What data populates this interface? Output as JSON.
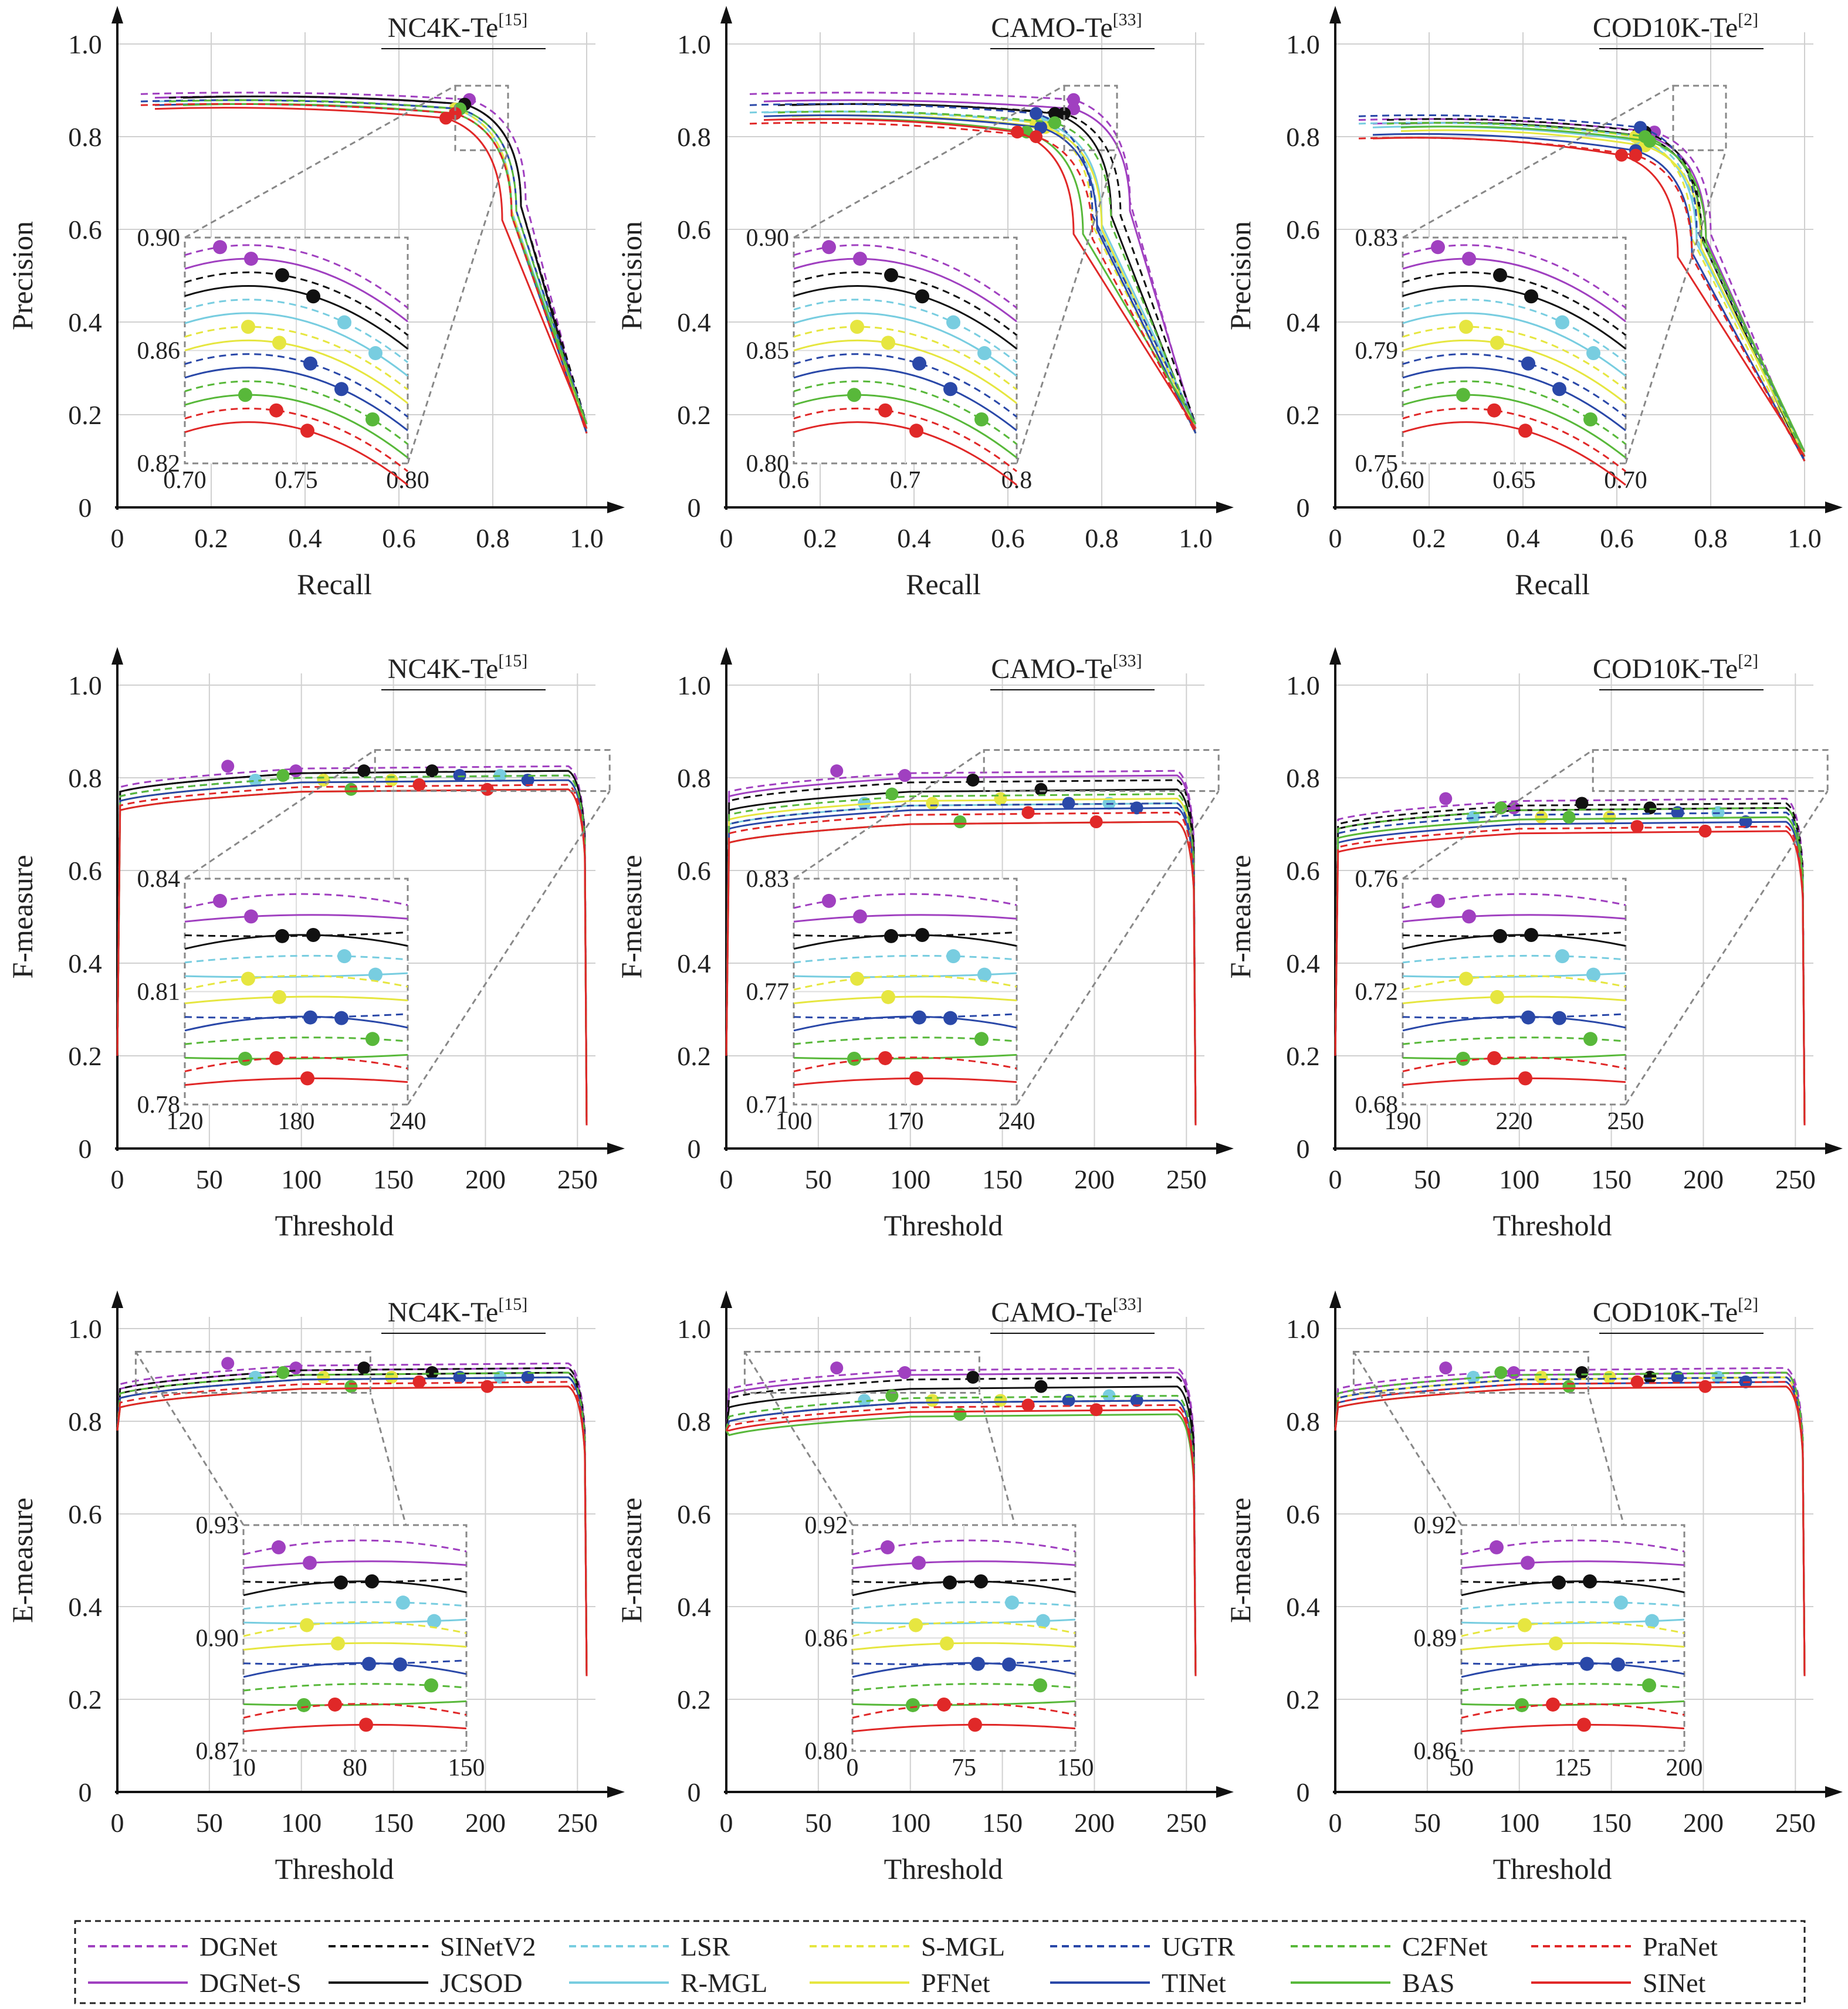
{
  "figure": {
    "rows": [
      {
        "kind": "pr",
        "ylabel": "Precision",
        "xlabel": "Recall",
        "yticks": [
          "0",
          "0.2",
          "0.4",
          "0.6",
          "0.8",
          "1.0"
        ],
        "xticks": [
          "0",
          "0.2",
          "0.4",
          "0.6",
          "0.8",
          "1.0"
        ]
      },
      {
        "kind": "fm",
        "ylabel": "F-measure",
        "xlabel": "Threshold",
        "yticks": [
          "0",
          "0.2",
          "0.4",
          "0.6",
          "0.8",
          "1.0"
        ],
        "xticks": [
          "0",
          "50",
          "100",
          "150",
          "200",
          "250"
        ]
      },
      {
        "kind": "em",
        "ylabel": "E-measure",
        "xlabel": "Threshold",
        "yticks": [
          "0",
          "0.2",
          "0.4",
          "0.6",
          "0.8",
          "1.0"
        ],
        "xticks": [
          "0",
          "50",
          "100",
          "150",
          "200",
          "250"
        ]
      }
    ],
    "datasets": [
      {
        "name": "NC4K-Te",
        "ref": "[15]"
      },
      {
        "name": "CAMO-Te",
        "ref": "[33]"
      },
      {
        "name": "COD10K-Te",
        "ref": "[2]"
      }
    ],
    "insets": [
      [
        {
          "y": [
            "0.90",
            "0.86",
            "0.82"
          ],
          "x": [
            "0.70",
            "0.75",
            "0.80"
          ]
        },
        {
          "y": [
            "0.90",
            "0.85",
            "0.80"
          ],
          "x": [
            "0.6",
            "0.7",
            "0.8"
          ]
        },
        {
          "y": [
            "0.83",
            "0.79",
            "0.75"
          ],
          "x": [
            "0.60",
            "0.65",
            "0.70"
          ]
        }
      ],
      [
        {
          "y": [
            "0.84",
            "0.81",
            "0.78"
          ],
          "x": [
            "120",
            "180",
            "240"
          ]
        },
        {
          "y": [
            "0.83",
            "0.77",
            "0.71"
          ],
          "x": [
            "100",
            "170",
            "240"
          ]
        },
        {
          "y": [
            "0.76",
            "0.72",
            "0.68"
          ],
          "x": [
            "190",
            "220",
            "250"
          ]
        }
      ],
      [
        {
          "y": [
            "0.93",
            "0.90",
            "0.87"
          ],
          "x": [
            "10",
            "80",
            "150"
          ]
        },
        {
          "y": [
            "0.92",
            "0.86",
            "0.80"
          ],
          "x": [
            "0",
            "75",
            "150"
          ]
        },
        {
          "y": [
            "0.92",
            "0.89",
            "0.86"
          ],
          "x": [
            "50",
            "125",
            "200"
          ]
        }
      ]
    ]
  },
  "legend": [
    {
      "name": "DGNet",
      "color": "#a040c0",
      "dash": true
    },
    {
      "name": "SINetV2",
      "color": "#111111",
      "dash": true
    },
    {
      "name": "LSR",
      "color": "#78cde0",
      "dash": true
    },
    {
      "name": "S-MGL",
      "color": "#e6e640",
      "dash": true
    },
    {
      "name": "UGTR",
      "color": "#2a48a8",
      "dash": true
    },
    {
      "name": "C2FNet",
      "color": "#58b83a",
      "dash": true
    },
    {
      "name": "PraNet",
      "color": "#e02828",
      "dash": true
    },
    {
      "name": "DGNet-S",
      "color": "#a040c0",
      "dash": false
    },
    {
      "name": "JCSOD",
      "color": "#111111",
      "dash": false
    },
    {
      "name": "R-MGL",
      "color": "#78cde0",
      "dash": false
    },
    {
      "name": "PFNet",
      "color": "#e6e640",
      "dash": false
    },
    {
      "name": "TINet",
      "color": "#2a48a8",
      "dash": false
    },
    {
      "name": "BAS",
      "color": "#58b83a",
      "dash": false
    },
    {
      "name": "SINet",
      "color": "#e02828",
      "dash": false
    }
  ],
  "chart_data": [
    {
      "type": "line",
      "panel": "NC4K-Te PR",
      "xlabel": "Recall",
      "ylabel": "Precision",
      "xlim": [
        0,
        1
      ],
      "ylim": [
        0,
        1
      ],
      "series": [
        {
          "name": "DGNet",
          "points": [
            [
              0.75,
              0.88
            ]
          ]
        },
        {
          "name": "DGNet-S",
          "points": [
            [
              0.74,
              0.87
            ]
          ]
        },
        {
          "name": "SINetV2",
          "points": [
            [
              0.74,
              0.87
            ]
          ]
        },
        {
          "name": "JCSOD",
          "points": [
            [
              0.74,
              0.87
            ]
          ]
        },
        {
          "name": "LSR",
          "points": [
            [
              0.73,
              0.86
            ]
          ]
        },
        {
          "name": "R-MGL",
          "points": [
            [
              0.72,
              0.86
            ]
          ]
        },
        {
          "name": "S-MGL",
          "points": [
            [
              0.72,
              0.86
            ]
          ]
        },
        {
          "name": "PFNet",
          "points": [
            [
              0.72,
              0.85
            ]
          ]
        },
        {
          "name": "UGTR",
          "points": [
            [
              0.73,
              0.86
            ]
          ]
        },
        {
          "name": "TINet",
          "points": [
            [
              0.72,
              0.85
            ]
          ]
        },
        {
          "name": "C2FNet",
          "points": [
            [
              0.73,
              0.86
            ]
          ]
        },
        {
          "name": "BAS",
          "points": [
            [
              0.72,
              0.85
            ]
          ]
        },
        {
          "name": "PraNet",
          "points": [
            [
              0.72,
              0.85
            ]
          ]
        },
        {
          "name": "SINet",
          "points": [
            [
              0.7,
              0.84
            ]
          ]
        }
      ]
    },
    {
      "type": "line",
      "panel": "CAMO-Te PR",
      "xlabel": "Recall",
      "ylabel": "Precision",
      "xlim": [
        0,
        1
      ],
      "ylim": [
        0,
        1
      ],
      "series": [
        {
          "name": "DGNet",
          "points": [
            [
              0.74,
              0.88
            ]
          ]
        },
        {
          "name": "DGNet-S",
          "points": [
            [
              0.74,
              0.86
            ]
          ]
        },
        {
          "name": "SINetV2",
          "points": [
            [
              0.72,
              0.85
            ]
          ]
        },
        {
          "name": "JCSOD",
          "points": [
            [
              0.7,
              0.85
            ]
          ]
        },
        {
          "name": "LSR",
          "points": [
            [
              0.67,
              0.83
            ]
          ]
        },
        {
          "name": "R-MGL",
          "points": [
            [
              0.68,
              0.83
            ]
          ]
        },
        {
          "name": "S-MGL",
          "points": [
            [
              0.66,
              0.83
            ]
          ]
        },
        {
          "name": "PFNet",
          "points": [
            [
              0.68,
              0.82
            ]
          ]
        },
        {
          "name": "UGTR",
          "points": [
            [
              0.66,
              0.85
            ]
          ]
        },
        {
          "name": "TINet",
          "points": [
            [
              0.67,
              0.82
            ]
          ]
        },
        {
          "name": "C2FNet",
          "points": [
            [
              0.7,
              0.83
            ]
          ]
        },
        {
          "name": "BAS",
          "points": [
            [
              0.64,
              0.81
            ]
          ]
        },
        {
          "name": "PraNet",
          "points": [
            [
              0.66,
              0.8
            ]
          ]
        },
        {
          "name": "SINet",
          "points": [
            [
              0.62,
              0.81
            ]
          ]
        }
      ]
    },
    {
      "type": "line",
      "panel": "COD10K-Te PR",
      "xlabel": "Recall",
      "ylabel": "Precision",
      "xlim": [
        0,
        1
      ],
      "ylim": [
        0,
        1
      ],
      "series": [
        {
          "name": "DGNet",
          "points": [
            [
              0.68,
              0.81
            ]
          ]
        },
        {
          "name": "DGNet-S",
          "points": [
            [
              0.67,
              0.8
            ]
          ]
        },
        {
          "name": "SINetV2",
          "points": [
            [
              0.66,
              0.81
            ]
          ]
        },
        {
          "name": "JCSOD",
          "points": [
            [
              0.66,
              0.8
            ]
          ]
        },
        {
          "name": "LSR",
          "points": [
            [
              0.65,
              0.8
            ]
          ]
        },
        {
          "name": "R-MGL",
          "points": [
            [
              0.65,
              0.79
            ]
          ]
        },
        {
          "name": "S-MGL",
          "points": [
            [
              0.64,
              0.8
            ]
          ]
        },
        {
          "name": "PFNet",
          "points": [
            [
              0.66,
              0.78
            ]
          ]
        },
        {
          "name": "UGTR",
          "points": [
            [
              0.65,
              0.82
            ]
          ]
        },
        {
          "name": "TINet",
          "points": [
            [
              0.64,
              0.77
            ]
          ]
        },
        {
          "name": "C2FNet",
          "points": [
            [
              0.66,
              0.8
            ]
          ]
        },
        {
          "name": "BAS",
          "points": [
            [
              0.67,
              0.79
            ]
          ]
        },
        {
          "name": "PraNet",
          "points": [
            [
              0.64,
              0.76
            ]
          ]
        },
        {
          "name": "SINet",
          "points": [
            [
              0.61,
              0.76
            ]
          ]
        }
      ]
    },
    {
      "type": "line",
      "panel": "NC4K-Te F-measure",
      "xlabel": "Threshold",
      "ylabel": "F-measure",
      "xlim": [
        0,
        255
      ],
      "ylim": [
        0,
        1
      ],
      "series": [
        {
          "name": "DGNet",
          "max": 0.83
        },
        {
          "name": "DGNet-S",
          "max": 0.82
        },
        {
          "name": "SINetV2",
          "max": 0.82
        },
        {
          "name": "JCSOD",
          "max": 0.82
        },
        {
          "name": "LSR",
          "max": 0.81
        },
        {
          "name": "R-MGL",
          "max": 0.8
        },
        {
          "name": "S-MGL",
          "max": 0.8
        },
        {
          "name": "PFNet",
          "max": 0.8
        },
        {
          "name": "UGTR",
          "max": 0.81
        },
        {
          "name": "TINet",
          "max": 0.8
        },
        {
          "name": "C2FNet",
          "max": 0.81
        },
        {
          "name": "BAS",
          "max": 0.78
        },
        {
          "name": "PraNet",
          "max": 0.79
        },
        {
          "name": "SINet",
          "max": 0.78
        }
      ]
    },
    {
      "type": "line",
      "panel": "CAMO-Te F-measure",
      "xlabel": "Threshold",
      "ylabel": "F-measure",
      "xlim": [
        0,
        255
      ],
      "ylim": [
        0,
        1
      ],
      "series": [
        {
          "name": "DGNet",
          "max": 0.82
        },
        {
          "name": "DGNet-S",
          "max": 0.81
        },
        {
          "name": "SINetV2",
          "max": 0.8
        },
        {
          "name": "JCSOD",
          "max": 0.78
        },
        {
          "name": "LSR",
          "max": 0.75
        },
        {
          "name": "R-MGL",
          "max": 0.75
        },
        {
          "name": "S-MGL",
          "max": 0.75
        },
        {
          "name": "PFNet",
          "max": 0.76
        },
        {
          "name": "UGTR",
          "max": 0.75
        },
        {
          "name": "TINet",
          "max": 0.74
        },
        {
          "name": "C2FNet",
          "max": 0.77
        },
        {
          "name": "BAS",
          "max": 0.71
        },
        {
          "name": "PraNet",
          "max": 0.73
        },
        {
          "name": "SINet",
          "max": 0.71
        }
      ]
    },
    {
      "type": "line",
      "panel": "COD10K-Te F-measure",
      "xlabel": "Threshold",
      "ylabel": "F-measure",
      "xlim": [
        0,
        255
      ],
      "ylim": [
        0,
        1
      ],
      "series": [
        {
          "name": "DGNet",
          "max": 0.76
        },
        {
          "name": "DGNet-S",
          "max": 0.74
        },
        {
          "name": "SINetV2",
          "max": 0.75
        },
        {
          "name": "JCSOD",
          "max": 0.74
        },
        {
          "name": "LSR",
          "max": 0.73
        },
        {
          "name": "R-MGL",
          "max": 0.72
        },
        {
          "name": "S-MGL",
          "max": 0.72
        },
        {
          "name": "PFNet",
          "max": 0.72
        },
        {
          "name": "UGTR",
          "max": 0.73
        },
        {
          "name": "TINet",
          "max": 0.71
        },
        {
          "name": "C2FNet",
          "max": 0.74
        },
        {
          "name": "BAS",
          "max": 0.72
        },
        {
          "name": "PraNet",
          "max": 0.7
        },
        {
          "name": "SINet",
          "max": 0.69
        }
      ]
    },
    {
      "type": "line",
      "panel": "NC4K-Te E-measure",
      "xlabel": "Threshold",
      "ylabel": "E-measure",
      "xlim": [
        0,
        255
      ],
      "ylim": [
        0,
        1
      ],
      "series": [
        {
          "name": "DGNet",
          "max": 0.93
        },
        {
          "name": "DGNet-S",
          "max": 0.92
        },
        {
          "name": "SINetV2",
          "max": 0.92
        },
        {
          "name": "JCSOD",
          "max": 0.91
        },
        {
          "name": "LSR",
          "max": 0.9
        },
        {
          "name": "R-MGL",
          "max": 0.9
        },
        {
          "name": "S-MGL",
          "max": 0.9
        },
        {
          "name": "PFNet",
          "max": 0.9
        },
        {
          "name": "UGTR",
          "max": 0.9
        },
        {
          "name": "TINet",
          "max": 0.9
        },
        {
          "name": "C2FNet",
          "max": 0.91
        },
        {
          "name": "BAS",
          "max": 0.88
        },
        {
          "name": "PraNet",
          "max": 0.89
        },
        {
          "name": "SINet",
          "max": 0.88
        }
      ]
    },
    {
      "type": "line",
      "panel": "CAMO-Te E-measure",
      "xlabel": "Threshold",
      "ylabel": "E-measure",
      "xlim": [
        0,
        255
      ],
      "ylim": [
        0,
        1
      ],
      "series": [
        {
          "name": "DGNet",
          "max": 0.92
        },
        {
          "name": "DGNet-S",
          "max": 0.91
        },
        {
          "name": "SINetV2",
          "max": 0.9
        },
        {
          "name": "JCSOD",
          "max": 0.88
        },
        {
          "name": "LSR",
          "max": 0.86
        },
        {
          "name": "R-MGL",
          "max": 0.85
        },
        {
          "name": "S-MGL",
          "max": 0.85
        },
        {
          "name": "PFNet",
          "max": 0.85
        },
        {
          "name": "UGTR",
          "max": 0.85
        },
        {
          "name": "TINet",
          "max": 0.85
        },
        {
          "name": "C2FNet",
          "max": 0.86
        },
        {
          "name": "BAS",
          "max": 0.82
        },
        {
          "name": "PraNet",
          "max": 0.84
        },
        {
          "name": "SINet",
          "max": 0.83
        }
      ]
    },
    {
      "type": "line",
      "panel": "COD10K-Te E-measure",
      "xlabel": "Threshold",
      "ylabel": "E-measure",
      "xlim": [
        0,
        255
      ],
      "ylim": [
        0,
        1
      ],
      "series": [
        {
          "name": "DGNet",
          "max": 0.92
        },
        {
          "name": "DGNet-S",
          "max": 0.91
        },
        {
          "name": "SINetV2",
          "max": 0.91
        },
        {
          "name": "JCSOD",
          "max": 0.9
        },
        {
          "name": "LSR",
          "max": 0.9
        },
        {
          "name": "R-MGL",
          "max": 0.9
        },
        {
          "name": "S-MGL",
          "max": 0.9
        },
        {
          "name": "PFNet",
          "max": 0.9
        },
        {
          "name": "UGTR",
          "max": 0.9
        },
        {
          "name": "TINet",
          "max": 0.89
        },
        {
          "name": "C2FNet",
          "max": 0.91
        },
        {
          "name": "BAS",
          "max": 0.88
        },
        {
          "name": "PraNet",
          "max": 0.89
        },
        {
          "name": "SINet",
          "max": 0.88
        }
      ]
    }
  ]
}
